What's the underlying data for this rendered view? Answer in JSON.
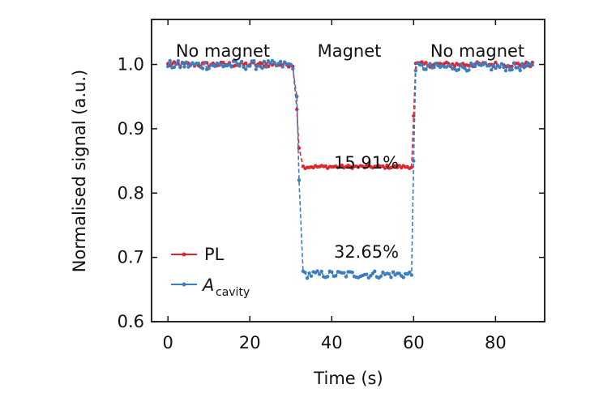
{
  "chart_data": {
    "type": "line",
    "xlabel": "Time (s)",
    "ylabel": "Normalised signal (a.u.)",
    "xlim": [
      -4,
      92
    ],
    "ylim": [
      0.6,
      1.07
    ],
    "xticks": [
      0,
      20,
      40,
      60,
      80
    ],
    "yticks": [
      0.6,
      0.7,
      0.8,
      0.9,
      1.0
    ],
    "xtick_labels": [
      "0",
      "20",
      "40",
      "60",
      "80"
    ],
    "ytick_labels": [
      "0.6",
      "0.7",
      "0.8",
      "0.9",
      "1.0"
    ],
    "legend": {
      "position": "lower-left"
    },
    "series": [
      {
        "name": "PL",
        "color": "#e0262b",
        "segments": [
          {
            "t_start": 0,
            "t_end": 30.5,
            "level": 1.0,
            "noise": 0.004
          },
          {
            "t_start": 33,
            "t_end": 59.5,
            "level": 0.8409,
            "noise": 0.0025
          },
          {
            "t_start": 60.5,
            "t_end": 89,
            "level": 1.0,
            "noise": 0.004
          }
        ],
        "transitions": [
          {
            "t": 31.5,
            "value": 0.93
          },
          {
            "t": 32.0,
            "value": 0.87
          },
          {
            "t": 60.0,
            "value": 0.92
          }
        ]
      },
      {
        "name": "A_cavity",
        "color": "#3b7dc0",
        "segments": [
          {
            "t_start": 0,
            "t_end": 30.5,
            "level": 0.999,
            "noise": 0.007
          },
          {
            "t_start": 33,
            "t_end": 59.5,
            "level": 0.6735,
            "noise": 0.006
          },
          {
            "t_start": 60.5,
            "t_end": 89,
            "level": 0.996,
            "noise": 0.006
          }
        ],
        "transitions": [
          {
            "t": 31.5,
            "value": 0.95
          },
          {
            "t": 32.0,
            "value": 0.82
          },
          {
            "t": 60.0,
            "value": 0.85
          }
        ]
      }
    ],
    "legend_labels": {
      "pl": "PL",
      "acavity_main": "A",
      "acavity_sub": "cavity"
    },
    "region_labels": [
      "No magnet",
      "Magnet",
      "No magnet"
    ],
    "annotations": [
      "15.91%",
      "32.65%"
    ]
  }
}
